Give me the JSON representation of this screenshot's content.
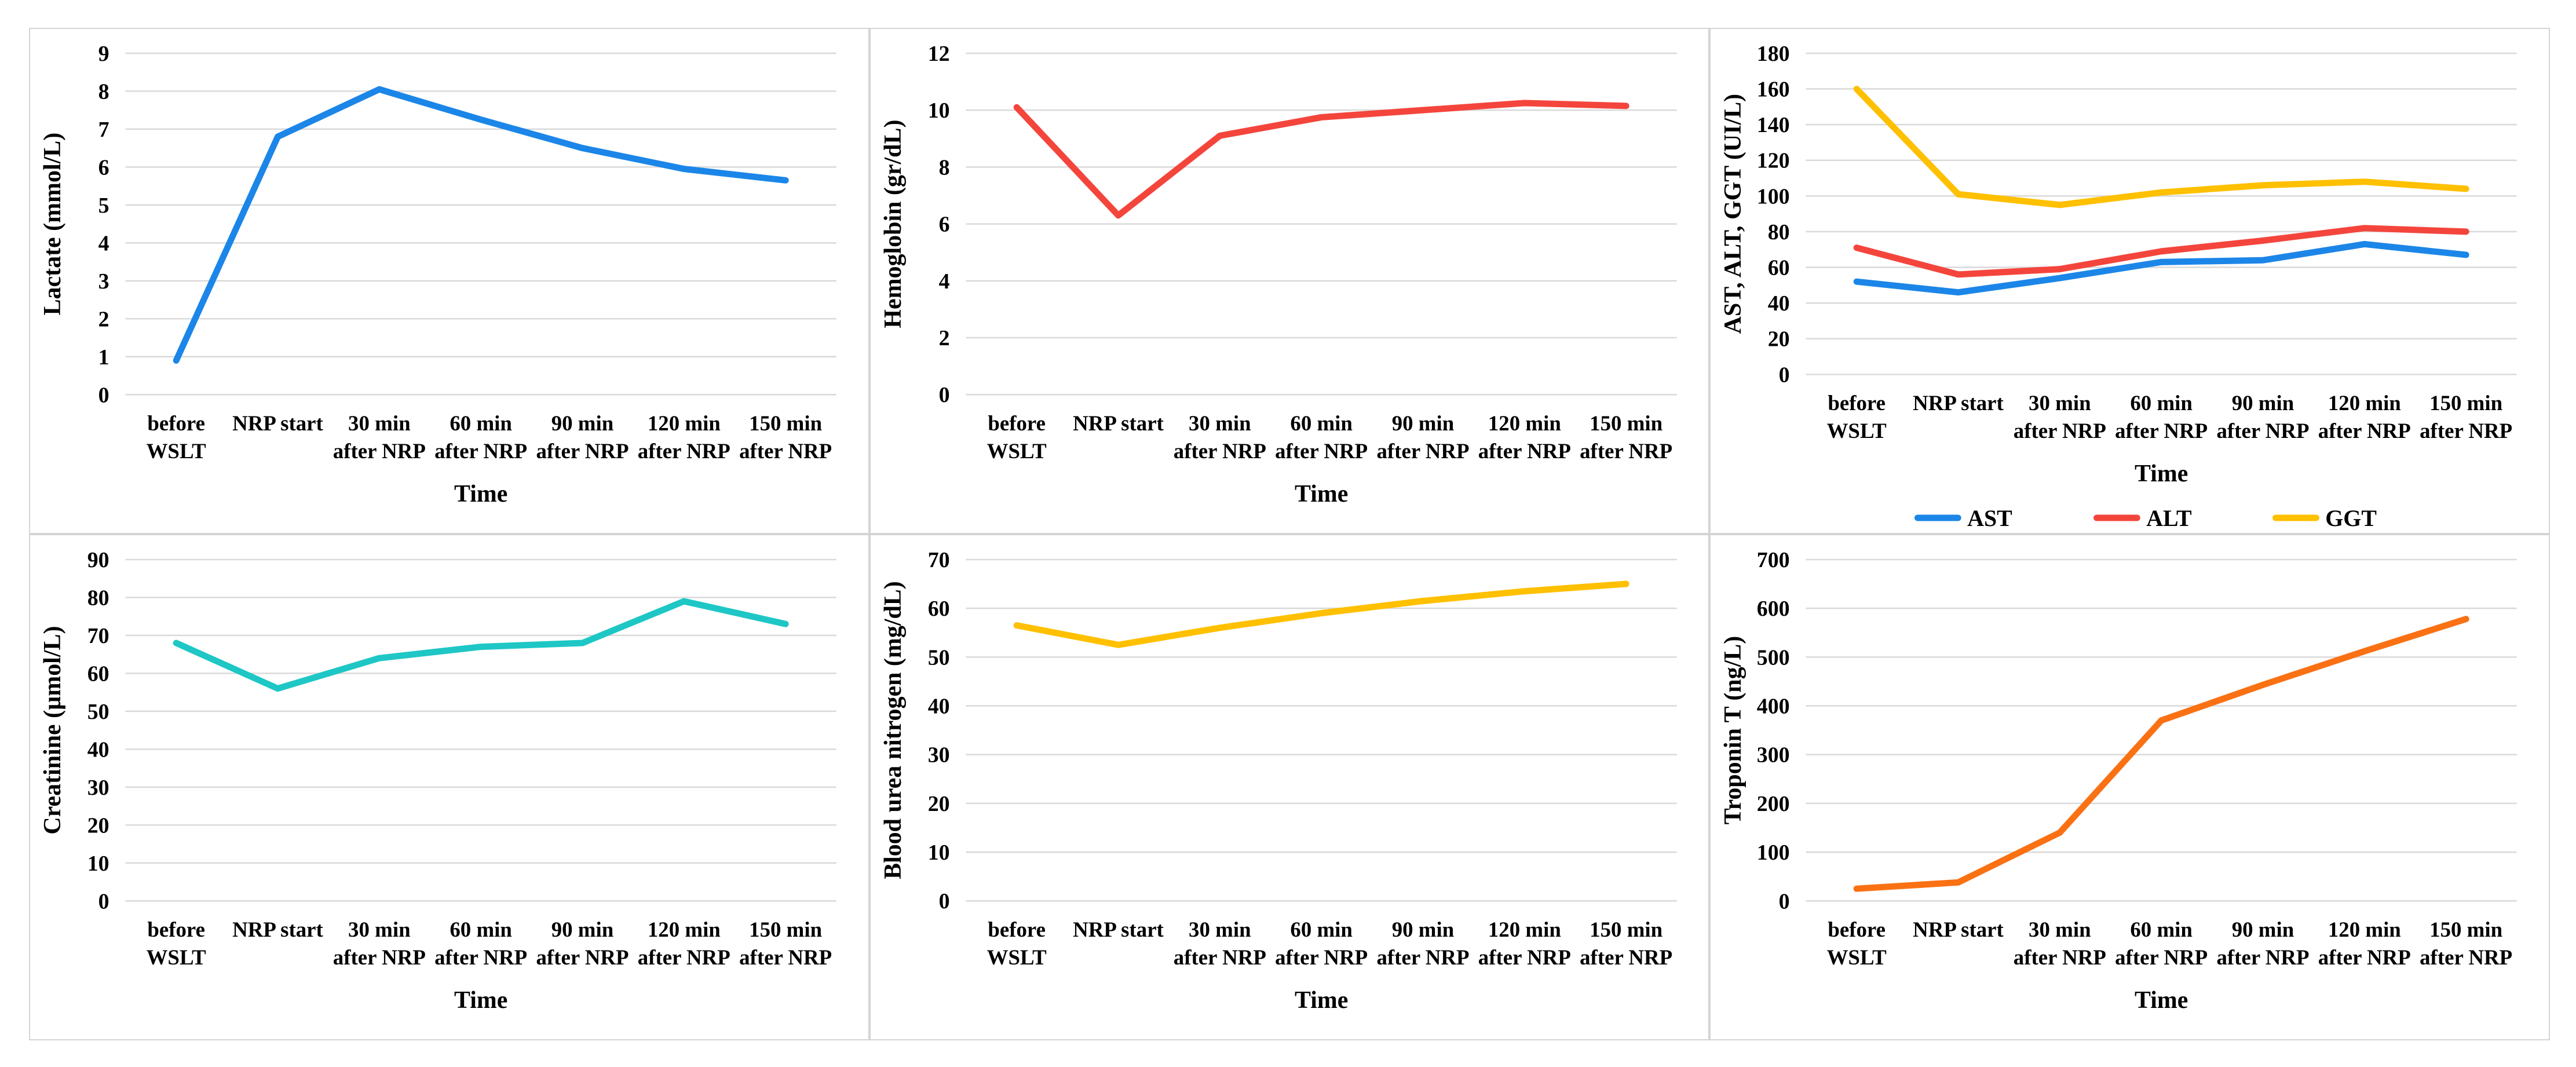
{
  "page": {
    "background": "#ffffff",
    "panel_border_color": "#d4d4d7",
    "gridline_color": "#d9d9d9",
    "text_color": "#000000"
  },
  "x_axis": {
    "title": "Time",
    "categories_two_line": [
      [
        "before",
        "WSLT"
      ],
      [
        "NRP start",
        ""
      ],
      [
        "30 min",
        "after NRP"
      ],
      [
        "60 min",
        "after NRP"
      ],
      [
        "90 min",
        "after NRP"
      ],
      [
        "120 min",
        "after NRP"
      ],
      [
        "150 min",
        "after NRP"
      ]
    ]
  },
  "chart_data": [
    {
      "id": "lactate",
      "type": "line",
      "title": "",
      "ylabel": "Lactate (mmol/L)",
      "xlabel": "Time",
      "ylim": [
        0,
        9
      ],
      "ystep": 1,
      "grid": true,
      "legend": false,
      "categories": [
        "before WSLT",
        "NRP start",
        "30 min after NRP",
        "60 min after NRP",
        "90 min after NRP",
        "120 min after NRP",
        "150 min after NRP"
      ],
      "series": [
        {
          "name": "Lactate",
          "color": "#1b86e8",
          "values": [
            0.9,
            6.8,
            8.05,
            7.25,
            6.5,
            5.95,
            5.65
          ]
        }
      ]
    },
    {
      "id": "hemoglobin",
      "type": "line",
      "title": "",
      "ylabel": "Hemoglobin (gr/dL)",
      "xlabel": "Time",
      "ylim": [
        0,
        12
      ],
      "ystep": 2,
      "grid": true,
      "legend": false,
      "categories": [
        "before WSLT",
        "NRP start",
        "30 min after NRP",
        "60 min after NRP",
        "90 min after NRP",
        "120 min after NRP",
        "150 min after NRP"
      ],
      "series": [
        {
          "name": "Hemoglobin",
          "color": "#f4453c",
          "values": [
            10.1,
            6.3,
            9.1,
            9.75,
            10.0,
            10.25,
            10.15
          ]
        }
      ]
    },
    {
      "id": "liver-enzymes",
      "type": "line",
      "title": "",
      "ylabel": "AST, ALT, GGT (UI/L)",
      "xlabel": "Time",
      "ylim": [
        0,
        180
      ],
      "ystep": 20,
      "grid": true,
      "legend": true,
      "legend_position": "bottom",
      "categories": [
        "before WSLT",
        "NRP start",
        "30 min after NRP",
        "60 min after NRP",
        "90 min after NRP",
        "120 min after NRP",
        "150 min after NRP"
      ],
      "series": [
        {
          "name": "AST",
          "color": "#1b86e8",
          "values": [
            52,
            46,
            54,
            63,
            64,
            73,
            67
          ]
        },
        {
          "name": "ALT",
          "color": "#f4453c",
          "values": [
            71,
            56,
            59,
            69,
            75,
            82,
            80
          ]
        },
        {
          "name": "GGT",
          "color": "#ffc000",
          "values": [
            160,
            101,
            95,
            102,
            106,
            108,
            104
          ]
        }
      ]
    },
    {
      "id": "creatinine",
      "type": "line",
      "title": "",
      "ylabel": "Creatinine (µmol/L)",
      "xlabel": "Time",
      "ylim": [
        0,
        90
      ],
      "ystep": 10,
      "grid": true,
      "legend": false,
      "categories": [
        "before WSLT",
        "NRP start",
        "30 min after NRP",
        "60 min after NRP",
        "90 min after NRP",
        "120 min after NRP",
        "150 min after NRP"
      ],
      "series": [
        {
          "name": "Creatinine",
          "color": "#1ec7c5",
          "values": [
            68,
            56,
            64,
            67,
            68,
            79,
            73
          ]
        }
      ]
    },
    {
      "id": "blood-urea-nitrogen",
      "type": "line",
      "title": "",
      "ylabel": "Blood urea nitrogen (mg/dL)",
      "xlabel": "Time",
      "ylim": [
        0,
        70
      ],
      "ystep": 10,
      "grid": true,
      "legend": false,
      "categories": [
        "before WSLT",
        "NRP start",
        "30 min after NRP",
        "60 min after NRP",
        "90 min after NRP",
        "120 min after NRP",
        "150 min after NRP"
      ],
      "series": [
        {
          "name": "Blood urea nitrogen",
          "color": "#ffc000",
          "values": [
            56.5,
            52.5,
            56,
            59,
            61.5,
            63.5,
            65
          ]
        }
      ]
    },
    {
      "id": "troponin-t",
      "type": "line",
      "title": "",
      "ylabel": "Troponin T (ng/L)",
      "xlabel": "Time",
      "ylim": [
        0,
        700
      ],
      "ystep": 100,
      "grid": true,
      "legend": false,
      "categories": [
        "before WSLT",
        "NRP start",
        "30 min after NRP",
        "60 min after NRP",
        "90 min after NRP",
        "120 min after NRP",
        "150 min after NRP"
      ],
      "series": [
        {
          "name": "Troponin T",
          "color": "#fa7114",
          "values": [
            25,
            38,
            140,
            370,
            443,
            512,
            578
          ]
        }
      ]
    }
  ]
}
